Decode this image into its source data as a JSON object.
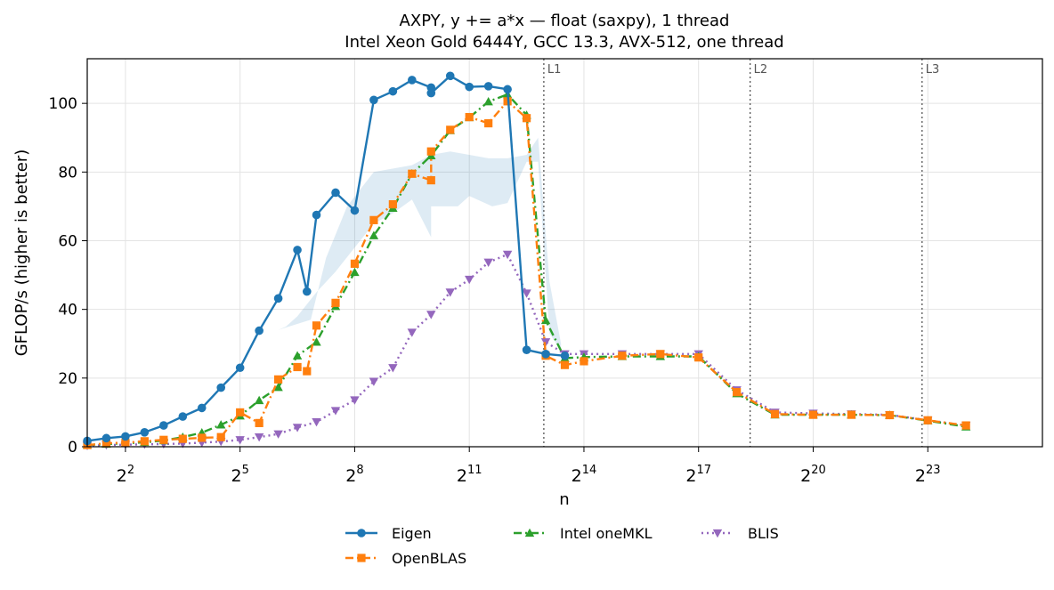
{
  "chart_data": {
    "type": "line",
    "title": "AXPY, y += a*x — float (saxpy), 1 thread",
    "subtitle": "Intel Xeon Gold 6444Y, GCC 13.3, AVX-512, one thread",
    "xlabel": "n",
    "ylabel": "GFLOP/s (higher is better)",
    "x_scale": "log2",
    "xlim": [
      1.0,
      26.0
    ],
    "ylim": [
      0,
      113
    ],
    "grid": true,
    "legend_position": "bottom-center",
    "x_ticks": [
      {
        "base": "2",
        "exp": "2",
        "log2": 2
      },
      {
        "base": "2",
        "exp": "5",
        "log2": 5
      },
      {
        "base": "2",
        "exp": "8",
        "log2": 8
      },
      {
        "base": "2",
        "exp": "11",
        "log2": 11
      },
      {
        "base": "2",
        "exp": "14",
        "log2": 14
      },
      {
        "base": "2",
        "exp": "17",
        "log2": 17
      },
      {
        "base": "2",
        "exp": "20",
        "log2": 20
      },
      {
        "base": "2",
        "exp": "23",
        "log2": 23
      }
    ],
    "y_ticks": [
      0,
      20,
      40,
      60,
      80,
      100
    ],
    "cache_lines": [
      {
        "label": "L1",
        "log2": 12.95
      },
      {
        "label": "L2",
        "log2": 18.35
      },
      {
        "label": "L3",
        "log2": 22.85
      }
    ],
    "band": {
      "upper": [
        [
          6.85,
          37
        ],
        [
          7.25,
          55
        ],
        [
          7.8,
          70
        ],
        [
          8.5,
          80
        ],
        [
          9.5,
          82
        ],
        [
          10.0,
          85
        ],
        [
          10.5,
          86
        ],
        [
          11.0,
          85
        ],
        [
          11.5,
          84
        ],
        [
          12.0,
          84
        ],
        [
          12.5,
          85
        ],
        [
          12.8,
          90
        ],
        [
          13.1,
          48
        ],
        [
          13.4,
          30
        ]
      ],
      "lower": [
        [
          13.4,
          28
        ],
        [
          13.1,
          33
        ],
        [
          12.8,
          83
        ],
        [
          12.5,
          83
        ],
        [
          12.0,
          71
        ],
        [
          11.6,
          70
        ],
        [
          11.0,
          73
        ],
        [
          10.7,
          70
        ],
        [
          10.0,
          70
        ],
        [
          10.0,
          61
        ],
        [
          9.5,
          72
        ],
        [
          9.0,
          68
        ],
        [
          8.5,
          65
        ],
        [
          8.0,
          58
        ],
        [
          7.5,
          51
        ],
        [
          7.0,
          45
        ],
        [
          6.5,
          38
        ],
        [
          6.2,
          35
        ],
        [
          6.0,
          34
        ],
        [
          6.85,
          37
        ]
      ]
    },
    "series": [
      {
        "name": "Eigen",
        "color": "#1f77b4",
        "marker": "circle",
        "dash": "",
        "x": [
          1,
          1.5,
          2,
          2.5,
          3,
          3.5,
          4,
          4.5,
          5,
          5.5,
          6,
          6.5,
          6.75,
          7,
          7.5,
          8,
          8.5,
          9,
          9.5,
          10,
          10,
          10.5,
          11,
          11.5,
          12,
          12.5,
          13,
          13.5
        ],
        "y": [
          1.7,
          2.5,
          3,
          4.2,
          6.2,
          8.8,
          11.3,
          17.2,
          23,
          33.8,
          43.2,
          57.3,
          45.2,
          67.5,
          74,
          68.8,
          101,
          103.5,
          106.8,
          104.6,
          103,
          108,
          104.8,
          105,
          104.1,
          28.2,
          27,
          26.5
        ]
      },
      {
        "name": "OpenBLAS",
        "color": "#ff7f0e",
        "marker": "square",
        "dash": "9,4,2,4",
        "x": [
          1,
          1.5,
          2,
          2.5,
          3,
          3.5,
          4,
          4.5,
          5,
          5.5,
          6,
          6.5,
          6.75,
          7,
          7.5,
          8,
          8.5,
          9,
          9.5,
          10,
          10,
          10.5,
          11,
          11.5,
          12,
          12.5,
          13,
          13.5,
          14,
          15,
          16,
          17,
          18,
          19,
          20,
          21,
          22,
          23,
          24
        ],
        "y": [
          0.5,
          1,
          1.2,
          1.6,
          2,
          2.3,
          2.6,
          2.8,
          10,
          6.9,
          19.6,
          23.2,
          22,
          35.3,
          41.9,
          53.3,
          66,
          70.6,
          79.5,
          77.6,
          86,
          92.3,
          96,
          94.2,
          100.6,
          95.7,
          26.5,
          23.8,
          24.9,
          26.5,
          27,
          26,
          15.9,
          9.5,
          9.3,
          9.3,
          9.2,
          7.7,
          6.2
        ]
      },
      {
        "name": "Intel oneMKL",
        "color": "#2ca02c",
        "marker": "triangle-up",
        "dash": "9,4,2,4",
        "x": [
          1,
          1.5,
          2,
          2.5,
          3,
          3.5,
          4,
          4.5,
          5,
          5.5,
          6,
          6.5,
          7,
          7.5,
          8,
          8.5,
          9,
          9.5,
          10,
          10.5,
          11,
          11.5,
          12,
          12.5,
          13,
          13.5,
          14,
          15,
          16,
          17,
          18,
          19,
          20,
          21,
          22,
          23,
          24
        ],
        "y": [
          0.5,
          0.8,
          1,
          1.3,
          1.8,
          2.8,
          4.1,
          6.4,
          9,
          13.5,
          17.3,
          26.5,
          30.5,
          40.9,
          50.8,
          61.5,
          69.5,
          79.5,
          84.8,
          92.1,
          95.9,
          100.5,
          102.6,
          96.6,
          36.8,
          25.8,
          26.1,
          26.3,
          26.3,
          26.3,
          15.5,
          9.3,
          9.3,
          9.3,
          9.2,
          7.6,
          5.8
        ]
      },
      {
        "name": "BLIS",
        "color": "#9467bd",
        "marker": "triangle-down",
        "dash": "2,4",
        "x": [
          1,
          1.5,
          2,
          2.5,
          3,
          3.5,
          4,
          4.5,
          5,
          5.5,
          6,
          6.5,
          7,
          7.5,
          8,
          8.5,
          9,
          9.5,
          10,
          10.5,
          11,
          11.5,
          12,
          12.5,
          13,
          13.5,
          14,
          15,
          16,
          17,
          18,
          19,
          20,
          21,
          22,
          23,
          24
        ],
        "y": [
          0.3,
          0.5,
          0.6,
          0.7,
          0.8,
          0.9,
          1.2,
          1.5,
          2,
          2.8,
          3.7,
          5.6,
          7.2,
          10.5,
          13.6,
          19,
          23,
          33.3,
          38.5,
          45,
          48.7,
          53.7,
          56,
          44.7,
          30.5,
          27,
          27,
          27,
          27,
          27,
          16.5,
          10,
          9.7,
          9.5,
          9.3,
          7.7,
          6.2
        ]
      }
    ]
  }
}
